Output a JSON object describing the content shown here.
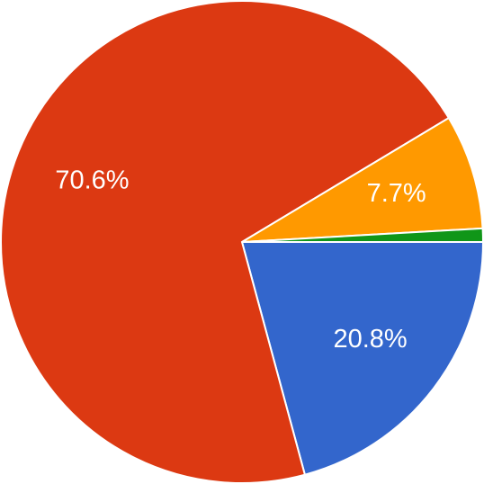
{
  "chart_data": {
    "type": "pie",
    "values": [
      20.8,
      70.6,
      7.7,
      0.9
    ],
    "value_labels": [
      "20.8%",
      "70.6%",
      "7.7%",
      null
    ],
    "colors": [
      "#3366cc",
      "#dc3912",
      "#ff9900",
      "#109618"
    ],
    "start_angle": 0,
    "direction": "clockwise"
  }
}
